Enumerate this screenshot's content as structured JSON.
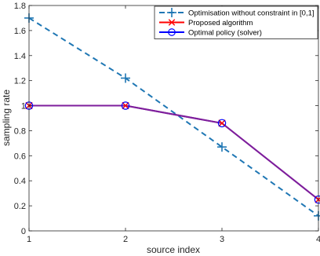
{
  "chart_data": {
    "type": "line",
    "x": [
      1,
      2,
      3,
      4
    ],
    "xlabel": "source index",
    "ylabel": "sampling rate",
    "xlim": [
      1,
      4
    ],
    "ylim": [
      0,
      1.8
    ],
    "x_ticks": [
      "1",
      "2",
      "3",
      "4"
    ],
    "y_ticks": [
      "0",
      "0.2",
      "0.4",
      "0.6",
      "0.8",
      "1",
      "1.2",
      "1.4",
      "1.6",
      "1.8"
    ],
    "grid": false,
    "legend_position": "top-right",
    "series": [
      {
        "name": "Optimisation without constraint in [0,1]",
        "values": [
          1.7,
          1.22,
          0.67,
          0.12
        ],
        "color": "#1f77b4",
        "line": "dashed",
        "marker": "plus"
      },
      {
        "name": "Proposed algorithm",
        "values": [
          1.0,
          1.0,
          0.86,
          0.25
        ],
        "color": "#ff0000",
        "line": "solid",
        "marker": "x"
      },
      {
        "name": "Optimal policy (solver)",
        "values": [
          1.0,
          1.0,
          0.86,
          0.25
        ],
        "color": "#0000ff",
        "line": "solid",
        "marker": "circle"
      }
    ],
    "overlap_line_color": "#7e1e9c"
  }
}
